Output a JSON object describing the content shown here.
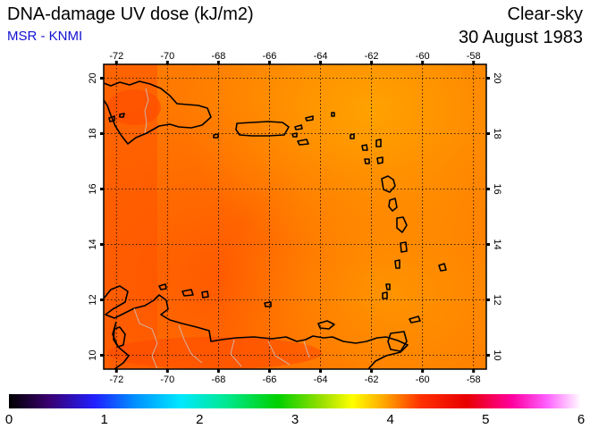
{
  "header": {
    "title": "DNA-damage UV dose (kJ/m2)",
    "credit": "MSR - KNMI",
    "sky": "Clear-sky",
    "date": "30 August 1983"
  },
  "map": {
    "lon_range": [
      -72.5,
      -57.5
    ],
    "lat_range": [
      9.5,
      20.5
    ],
    "lon_ticks": [
      "-72",
      "-70",
      "-68",
      "-66",
      "-64",
      "-62",
      "-60",
      "-58"
    ],
    "lat_ticks": [
      "10",
      "12",
      "14",
      "16",
      "18",
      "20"
    ],
    "field_color": "#ff7a00",
    "field_shades": [
      "#ff5c00",
      "#ff8800",
      "#ffa000"
    ],
    "coast_color": "#000000"
  },
  "colorbar": {
    "labels": [
      "0",
      "1",
      "2",
      "3",
      "4",
      "5",
      "6"
    ],
    "min": 0,
    "max": 6
  }
}
